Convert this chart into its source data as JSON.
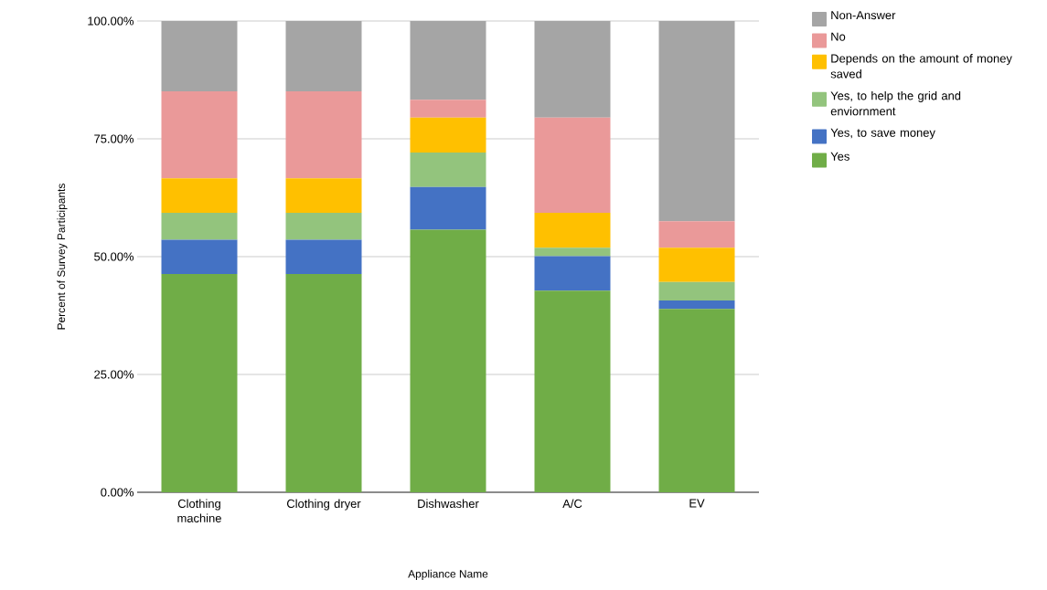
{
  "chart_data": {
    "type": "bar",
    "stacked": true,
    "xlabel": "Appliance Name",
    "ylabel": "Percent of Survey Participants",
    "categories": [
      "Clothing machine",
      "Clothing dryer",
      "Dishwasher",
      "A/C",
      "EV"
    ],
    "series": [
      {
        "name": "Yes",
        "color": "#70ad47",
        "values": [
          46.3,
          46.3,
          55.7,
          42.8,
          38.9
        ]
      },
      {
        "name": "Yes, to save money",
        "color": "#4472c4",
        "values": [
          7.3,
          7.3,
          9.1,
          7.3,
          1.8
        ]
      },
      {
        "name": "Yes, to help the grid and enviornment",
        "color": "#93c47d",
        "values": [
          5.7,
          5.7,
          7.3,
          1.8,
          3.9
        ]
      },
      {
        "name": "Depends on the amount of money saved",
        "color": "#ffc000",
        "values": [
          7.3,
          7.3,
          7.4,
          7.4,
          7.3
        ]
      },
      {
        "name": "No",
        "color": "#ea9999",
        "values": [
          18.5,
          18.5,
          3.8,
          20.2,
          5.6
        ]
      },
      {
        "name": "Non-Answer",
        "color": "#a5a5a5",
        "values": [
          14.9,
          14.9,
          16.7,
          20.5,
          42.5
        ]
      }
    ],
    "ylim": [
      0,
      100
    ],
    "yticks": [
      {
        "value": 0,
        "label": "0.00%"
      },
      {
        "value": 25,
        "label": "25.00%"
      },
      {
        "value": 50,
        "label": "50.00%"
      },
      {
        "value": 75,
        "label": "75.00%"
      },
      {
        "value": 100,
        "label": "100.00%"
      }
    ],
    "grid": "y",
    "legend": "right"
  }
}
